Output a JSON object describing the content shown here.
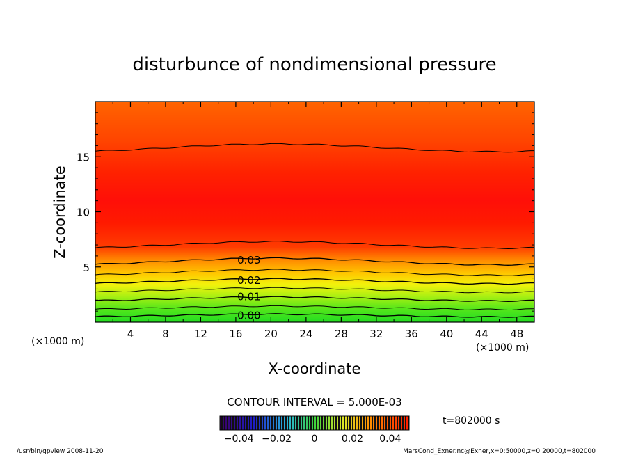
{
  "chart_data": {
    "type": "heatmap",
    "title": "disturbunce of nondimensional pressure",
    "xlabel": "X-coordinate",
    "ylabel": "Z-coordinate",
    "x_unit": "(×1000 m)",
    "z_unit": "(×1000 m)",
    "xlim": [
      0,
      50
    ],
    "ylim": [
      0,
      20
    ],
    "x_ticks": [
      "4",
      "8",
      "12",
      "16",
      "20",
      "24",
      "28",
      "32",
      "36",
      "40",
      "44",
      "48"
    ],
    "x_tick_values": [
      4,
      8,
      12,
      16,
      20,
      24,
      28,
      32,
      36,
      40,
      44,
      48
    ],
    "y_ticks": [
      "5",
      "10",
      "15"
    ],
    "y_tick_values": [
      5,
      10,
      15
    ],
    "contour_labels": [
      {
        "text": "0.03",
        "x": 17.5,
        "z": 5.6
      },
      {
        "text": "0.02",
        "x": 17.5,
        "z": 3.8
      },
      {
        "text": "0.01",
        "x": 17.5,
        "z": 2.3
      },
      {
        "text": "0.00",
        "x": 17.5,
        "z": 0.6
      }
    ],
    "contour_interval_text": "CONTOUR INTERVAL = 5.000E-03",
    "colorbar": {
      "range": [
        -0.05,
        0.05
      ],
      "tick_labels": [
        "−0.04",
        "−0.02",
        "0",
        "0.02",
        "0.04"
      ],
      "tick_values": [
        -0.04,
        -0.02,
        0,
        0.02,
        0.04
      ]
    },
    "time_label": "t=802000 s"
  },
  "footer": {
    "left": "/usr/bin/gpview   2008-11-20",
    "right": "MarsCond_Exner.nc@Exner,x=0:50000,z=0:20000,t=802000"
  }
}
